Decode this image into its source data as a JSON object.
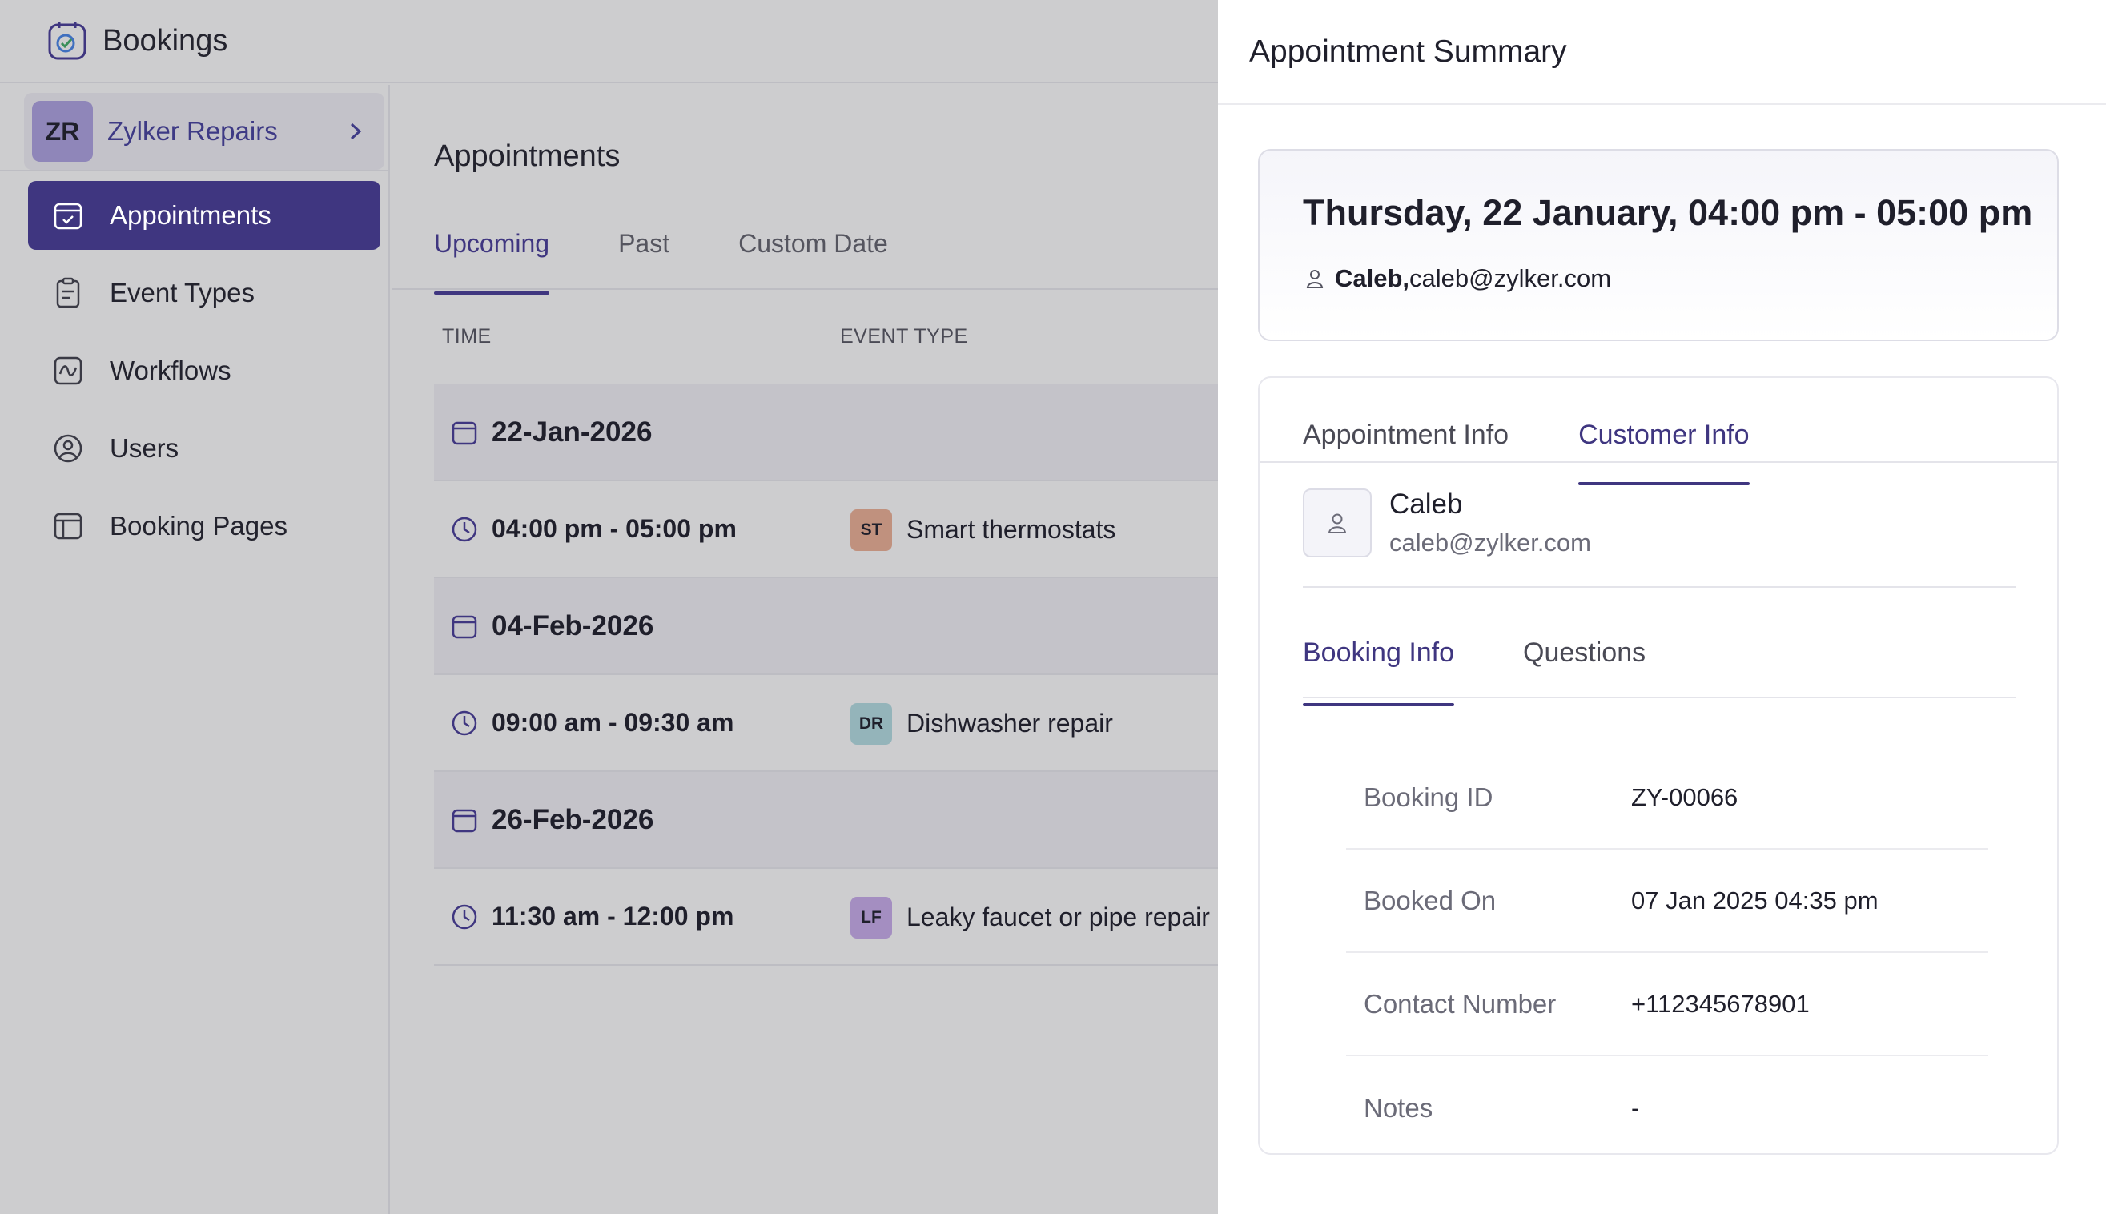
{
  "app": {
    "title": "Bookings"
  },
  "org": {
    "initials": "ZR",
    "name": "Zylker Repairs"
  },
  "nav": [
    {
      "label": "Appointments",
      "icon": "calendar-check-icon",
      "active": true
    },
    {
      "label": "Event Types",
      "icon": "clipboard-icon",
      "active": false
    },
    {
      "label": "Workflows",
      "icon": "workflow-icon",
      "active": false
    },
    {
      "label": "Users",
      "icon": "user-circle-icon",
      "active": false
    },
    {
      "label": "Booking Pages",
      "icon": "booking-page-icon",
      "active": false
    }
  ],
  "main": {
    "title": "Appointments",
    "tabs": [
      "Upcoming",
      "Past",
      "Custom Date"
    ],
    "active_tab": "Upcoming",
    "columns": [
      "TIME",
      "EVENT TYPE"
    ],
    "groups": [
      {
        "date": "22-Jan-2026",
        "time": "04:00 pm - 05:00 pm",
        "event_initials": "ST",
        "event": "Smart thermostats",
        "badge_color": "#c0917e"
      },
      {
        "date": "04-Feb-2026",
        "time": "09:00 am - 09:30 am",
        "event_initials": "DR",
        "event": "Dishwasher repair",
        "badge_color": "#94b4ba"
      },
      {
        "date": "26-Feb-2026",
        "time": "11:30 am - 12:00 pm",
        "event_initials": "LF",
        "event": "Leaky faucet or pipe repair",
        "badge_color": "#a48ec1"
      }
    ]
  },
  "panel": {
    "title": "Appointment Summary",
    "when": "Thursday, 22 January, 04:00 pm - 05:00 pm",
    "customer_name": "Caleb,",
    "customer_email": "caleb@zylker.com",
    "tabs": [
      "Appointment Info",
      "Customer Info"
    ],
    "active_tab": "Customer Info",
    "customer": {
      "name": "Caleb",
      "email": "caleb@zylker.com"
    },
    "subtabs": [
      "Booking Info",
      "Questions"
    ],
    "active_subtab": "Booking Info",
    "details": [
      {
        "label": "Booking ID",
        "value": "ZY-00066"
      },
      {
        "label": "Booked On",
        "value": "07 Jan 2025 04:35 pm"
      },
      {
        "label": "Contact Number",
        "value": "+112345678901"
      },
      {
        "label": "Notes",
        "value": "-"
      }
    ]
  },
  "colors": {
    "accent": "#3f3680",
    "overlay": "#cdcdcf",
    "panel": "#ffffff"
  }
}
